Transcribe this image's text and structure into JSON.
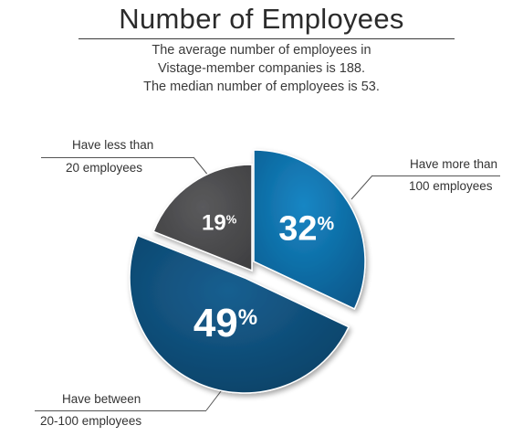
{
  "colors": {
    "more_than_100": "#0b6aa3",
    "between_20_100": "#0d4f79",
    "less_than_20": "#4a4a4c"
  },
  "chart_data": {
    "type": "pie",
    "title": "Number of Employees",
    "subtitle": [
      "The average number of employees in",
      "Vistage-member companies is 188.",
      "The median number of employees is 53."
    ],
    "slices": [
      {
        "label_line1": "Have more than",
        "label_line2": "100 employees",
        "value": 32,
        "display": "32",
        "unit": "%"
      },
      {
        "label_line1": "Have between",
        "label_line2": "20-100 employees",
        "value": 49,
        "display": "49",
        "unit": "%"
      },
      {
        "label_line1": "Have less than",
        "label_line2": "20 employees",
        "value": 19,
        "display": "19",
        "unit": "%"
      }
    ]
  }
}
